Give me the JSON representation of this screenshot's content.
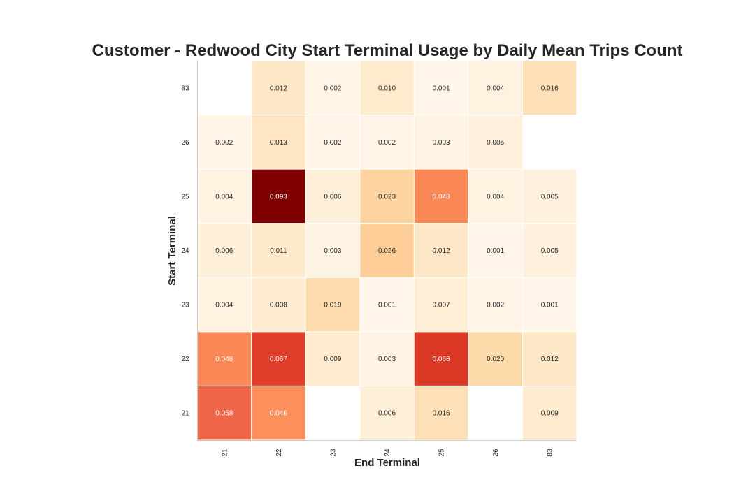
{
  "chart_data": {
    "type": "heatmap",
    "title": "Customer - Redwood City Start Terminal Usage by Daily Mean Trips Count",
    "xlabel": "End Terminal",
    "ylabel": "Start Terminal",
    "x_categories": [
      "21",
      "22",
      "23",
      "24",
      "25",
      "26",
      "83"
    ],
    "y_categories": [
      "83",
      "26",
      "25",
      "24",
      "23",
      "22",
      "21"
    ],
    "values": [
      [
        null,
        0.012,
        0.002,
        0.01,
        0.001,
        0.004,
        0.016
      ],
      [
        0.002,
        0.013,
        0.002,
        0.002,
        0.003,
        0.005,
        null
      ],
      [
        0.004,
        0.093,
        0.006,
        0.023,
        0.048,
        0.004,
        0.005
      ],
      [
        0.006,
        0.011,
        0.003,
        0.026,
        0.012,
        0.001,
        0.005
      ],
      [
        0.004,
        0.008,
        0.019,
        0.001,
        0.007,
        0.002,
        0.001
      ],
      [
        0.048,
        0.067,
        0.009,
        0.003,
        0.068,
        0.02,
        0.012
      ],
      [
        0.058,
        0.046,
        null,
        0.006,
        0.016,
        null,
        0.009
      ]
    ],
    "value_format": "3 decimals",
    "colormap": "OrRd",
    "color_range": [
      0,
      0.093
    ],
    "colorbar": false,
    "grid": false
  }
}
